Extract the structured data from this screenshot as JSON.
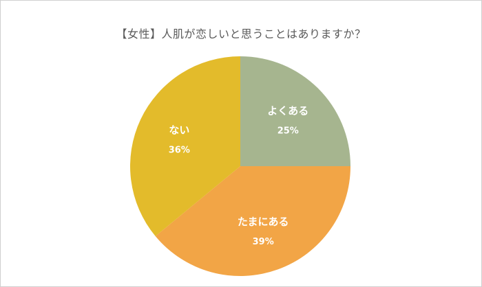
{
  "chart_data": {
    "type": "pie",
    "title": "【女性】人肌が恋しいと思うことはありますか？",
    "categories": [
      "よくある",
      "たまにある",
      "ない"
    ],
    "values": [
      25,
      39,
      36
    ],
    "value_labels": [
      "25%",
      "39%",
      "36%"
    ],
    "colors": [
      "#a6b58f",
      "#f2a546",
      "#e3bb2b"
    ],
    "start": "12 o'clock",
    "direction": "clockwise",
    "legend": "none"
  }
}
